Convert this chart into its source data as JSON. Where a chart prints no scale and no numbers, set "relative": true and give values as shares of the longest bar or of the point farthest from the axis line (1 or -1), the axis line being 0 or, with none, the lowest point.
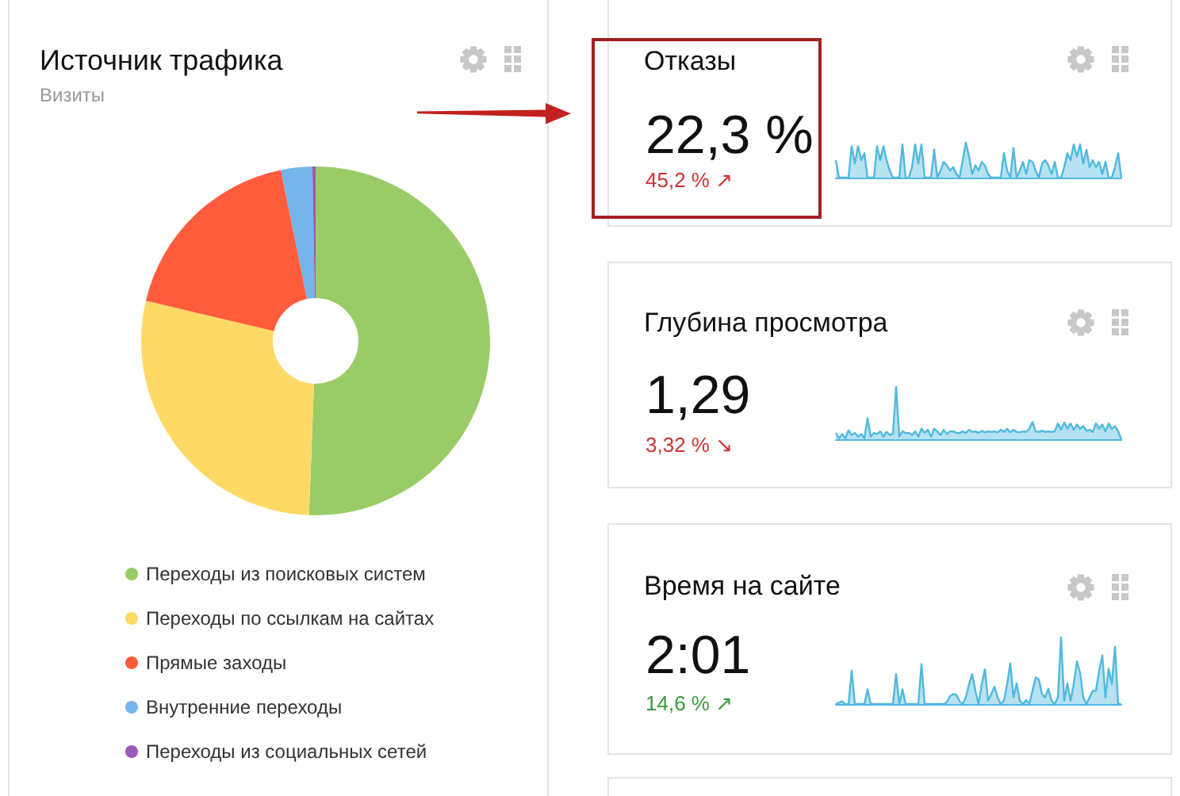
{
  "chart_data": [
    {
      "type": "donut",
      "title": "Источник трафика",
      "subtitle": "Визиты",
      "categories": [
        "Переходы из поисковых систем",
        "Переходы по ссылкам на сайтах",
        "Прямые заходы",
        "Внутренние переходы",
        "Переходы из социальных сетей"
      ],
      "values": [
        50.6,
        28.1,
        18.1,
        2.9,
        0.3
      ],
      "colors": [
        "#99cc66",
        "#ffd966",
        "#ff5c3d",
        "#74b4e8",
        "#9b59b6"
      ],
      "legend": "bottom"
    },
    {
      "type": "area",
      "title": "Отказы",
      "annotations": [
        "22,3 %",
        "45,2 % ↗"
      ],
      "relative": true,
      "color": "#50b9de",
      "categories": [
        null,
        null,
        null,
        null,
        null,
        null,
        null,
        null,
        null,
        null,
        null,
        null,
        null,
        null,
        null,
        null,
        null,
        null,
        null,
        null,
        null,
        null,
        null,
        null,
        null,
        null,
        null,
        null,
        null,
        null,
        null,
        null,
        null,
        null,
        null,
        null,
        null,
        null,
        null,
        null,
        null,
        null,
        null,
        null,
        null,
        null,
        null,
        null,
        null,
        null,
        null,
        null,
        null,
        null,
        null,
        null,
        null,
        null,
        null,
        null,
        null,
        null,
        null,
        null,
        null,
        null,
        null,
        null,
        null,
        null,
        null,
        null,
        null,
        null,
        null,
        null,
        null,
        null,
        null,
        null,
        null,
        null,
        null,
        null,
        null,
        null,
        null,
        null,
        null,
        null,
        null
      ],
      "values": [
        0.5,
        0,
        0,
        0,
        0,
        0.9,
        0.4,
        0.9,
        0.5,
        0.7,
        0,
        0,
        0,
        0.9,
        0.5,
        0.9,
        0.5,
        0.2,
        0,
        0,
        0,
        0.95,
        0,
        0,
        0.3,
        0.95,
        0.4,
        0.95,
        0,
        0,
        0,
        0.8,
        0,
        0.2,
        0.45,
        0.35,
        0.2,
        0.3,
        0.1,
        0,
        0.5,
        1,
        0.6,
        0.1,
        0.35,
        0.2,
        0.45,
        0.35,
        0.1,
        0,
        0,
        0,
        0,
        0.7,
        0.2,
        0,
        0.85,
        0,
        0.2,
        0.45,
        0.1,
        0.5,
        0.45,
        0.2,
        0,
        0.4,
        0.5,
        0.35,
        0.1,
        0.45,
        0,
        0,
        0.3,
        0.7,
        0.5,
        0.95,
        0.6,
        0.95,
        0.4,
        0.8,
        0.3,
        0.5,
        0.3,
        0.45,
        0.1,
        0.45,
        0,
        0,
        0.3,
        0.7,
        0
      ]
    },
    {
      "type": "area",
      "title": "Глубина просмотра",
      "annotations": [
        "1,29",
        "3,32 % ↘"
      ],
      "relative": true,
      "color": "#50b9de",
      "categories": [
        null,
        null,
        null,
        null,
        null,
        null,
        null,
        null,
        null,
        null,
        null,
        null,
        null,
        null,
        null,
        null,
        null,
        null,
        null,
        null,
        null,
        null,
        null,
        null,
        null,
        null,
        null,
        null,
        null,
        null,
        null,
        null,
        null,
        null,
        null,
        null,
        null,
        null,
        null,
        null,
        null,
        null,
        null,
        null,
        null,
        null,
        null,
        null,
        null,
        null,
        null,
        null,
        null,
        null,
        null,
        null,
        null,
        null,
        null,
        null,
        null,
        null,
        null,
        null,
        null,
        null,
        null,
        null,
        null,
        null,
        null,
        null,
        null,
        null,
        null,
        null,
        null,
        null,
        null,
        null,
        null,
        null,
        null,
        null,
        null,
        null,
        null,
        null,
        null,
        null,
        null
      ],
      "values": [
        0.12,
        0.02,
        0.1,
        0.02,
        0.17,
        0.08,
        0.12,
        0.05,
        0.1,
        0.02,
        0.4,
        0.05,
        0.12,
        0.1,
        0.15,
        0.05,
        0.14,
        0.08,
        0.1,
        1,
        0.05,
        0.15,
        0.12,
        0.12,
        0.08,
        0.15,
        0.05,
        0.2,
        0.12,
        0.18,
        0.05,
        0.2,
        0.15,
        0.08,
        0.18,
        0.1,
        0.15,
        0.15,
        0.12,
        0.12,
        0.15,
        0.12,
        0.18,
        0.14,
        0.15,
        0.12,
        0.16,
        0.13,
        0.15,
        0.14,
        0.15,
        0.13,
        0.18,
        0.14,
        0.2,
        0.13,
        0.18,
        0.14,
        0.13,
        0.15,
        0.14,
        0.2,
        0.33,
        0.15,
        0.14,
        0.16,
        0.14,
        0.15,
        0.14,
        0.15,
        0.3,
        0.18,
        0.32,
        0.2,
        0.3,
        0.18,
        0.28,
        0.2,
        0.25,
        0.16,
        0.18,
        0.14,
        0.3,
        0.2,
        0.28,
        0.15,
        0.3,
        0.2,
        0.25,
        0.15,
        0
      ]
    },
    {
      "type": "area",
      "title": "Время на сайте",
      "annotations": [
        "2:01",
        "14,6 % ↗"
      ],
      "relative": true,
      "color": "#50b9de",
      "categories": [
        null,
        null,
        null,
        null,
        null,
        null,
        null,
        null,
        null,
        null,
        null,
        null,
        null,
        null,
        null,
        null,
        null,
        null,
        null,
        null,
        null,
        null,
        null,
        null,
        null,
        null,
        null,
        null,
        null,
        null,
        null,
        null,
        null,
        null,
        null,
        null,
        null,
        null,
        null,
        null,
        null,
        null,
        null,
        null,
        null,
        null,
        null,
        null,
        null,
        null,
        null,
        null,
        null,
        null,
        null,
        null,
        null,
        null,
        null,
        null,
        null,
        null,
        null,
        null,
        null,
        null,
        null,
        null,
        null,
        null,
        null,
        null,
        null,
        null,
        null,
        null,
        null,
        null,
        null,
        null,
        null,
        null,
        null,
        null,
        null,
        null,
        null,
        null,
        null,
        null,
        null
      ],
      "values": [
        0,
        0.02,
        0.04,
        0,
        0,
        0.5,
        0,
        0,
        0,
        0,
        0.22,
        0,
        0,
        0,
        0,
        0,
        0,
        0,
        0,
        0.45,
        0,
        0.22,
        0,
        0,
        0,
        0,
        0,
        0.6,
        0,
        0,
        0,
        0,
        0,
        0,
        0,
        0.03,
        0.12,
        0.15,
        0.14,
        0.04,
        0,
        0.1,
        0.3,
        0.45,
        0.2,
        0,
        0.3,
        0.52,
        0.05,
        0.15,
        0.26,
        0.1,
        0,
        0.05,
        0.3,
        0.61,
        0.1,
        0.31,
        0.05,
        0,
        0.06,
        0,
        0.2,
        0.4,
        0.37,
        0.15,
        0.1,
        0.23,
        0.05,
        0,
        0.1,
        1,
        0.05,
        0.31,
        0.05,
        0.3,
        0.64,
        0.47,
        0.1,
        0,
        0.1,
        0.2,
        0.2,
        0.5,
        0.73,
        0.1,
        0.53,
        0.3,
        0.86,
        0,
        0
      ]
    }
  ]
}
